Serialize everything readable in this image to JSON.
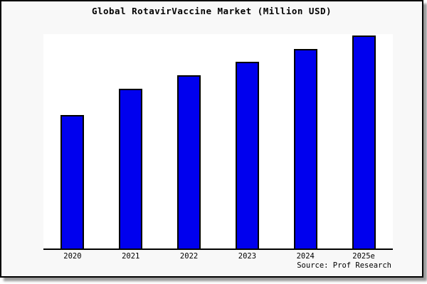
{
  "title": "Global RotavirVaccine Market (Million USD)",
  "source": "Source: Prof Research",
  "colors": {
    "figure_bg": "#f8f8f8",
    "plot_bg": "#ffffff",
    "bar_fill": "#0000ee",
    "bar_edge": "#000000",
    "frame_border": "#000000",
    "axis_line": "#000000",
    "shadow": "#9a9a9a",
    "text": "#000000"
  },
  "chart_data": {
    "type": "bar",
    "title": "Global RotavirVaccine Market (Million USD)",
    "categories": [
      "2020",
      "2021",
      "2022",
      "2023",
      "2024",
      "2025e"
    ],
    "values": [
      188,
      225,
      244,
      263,
      281,
      300
    ],
    "values_note": "no y-axis ticks or data labels are shown in the image; values are relative bar heights in pixels",
    "ylim": [
      0,
      302
    ],
    "xlabel": "",
    "ylabel": "",
    "grid": false,
    "y_axis_visible": false,
    "legend": null,
    "annotation": "Source: Prof Research"
  }
}
